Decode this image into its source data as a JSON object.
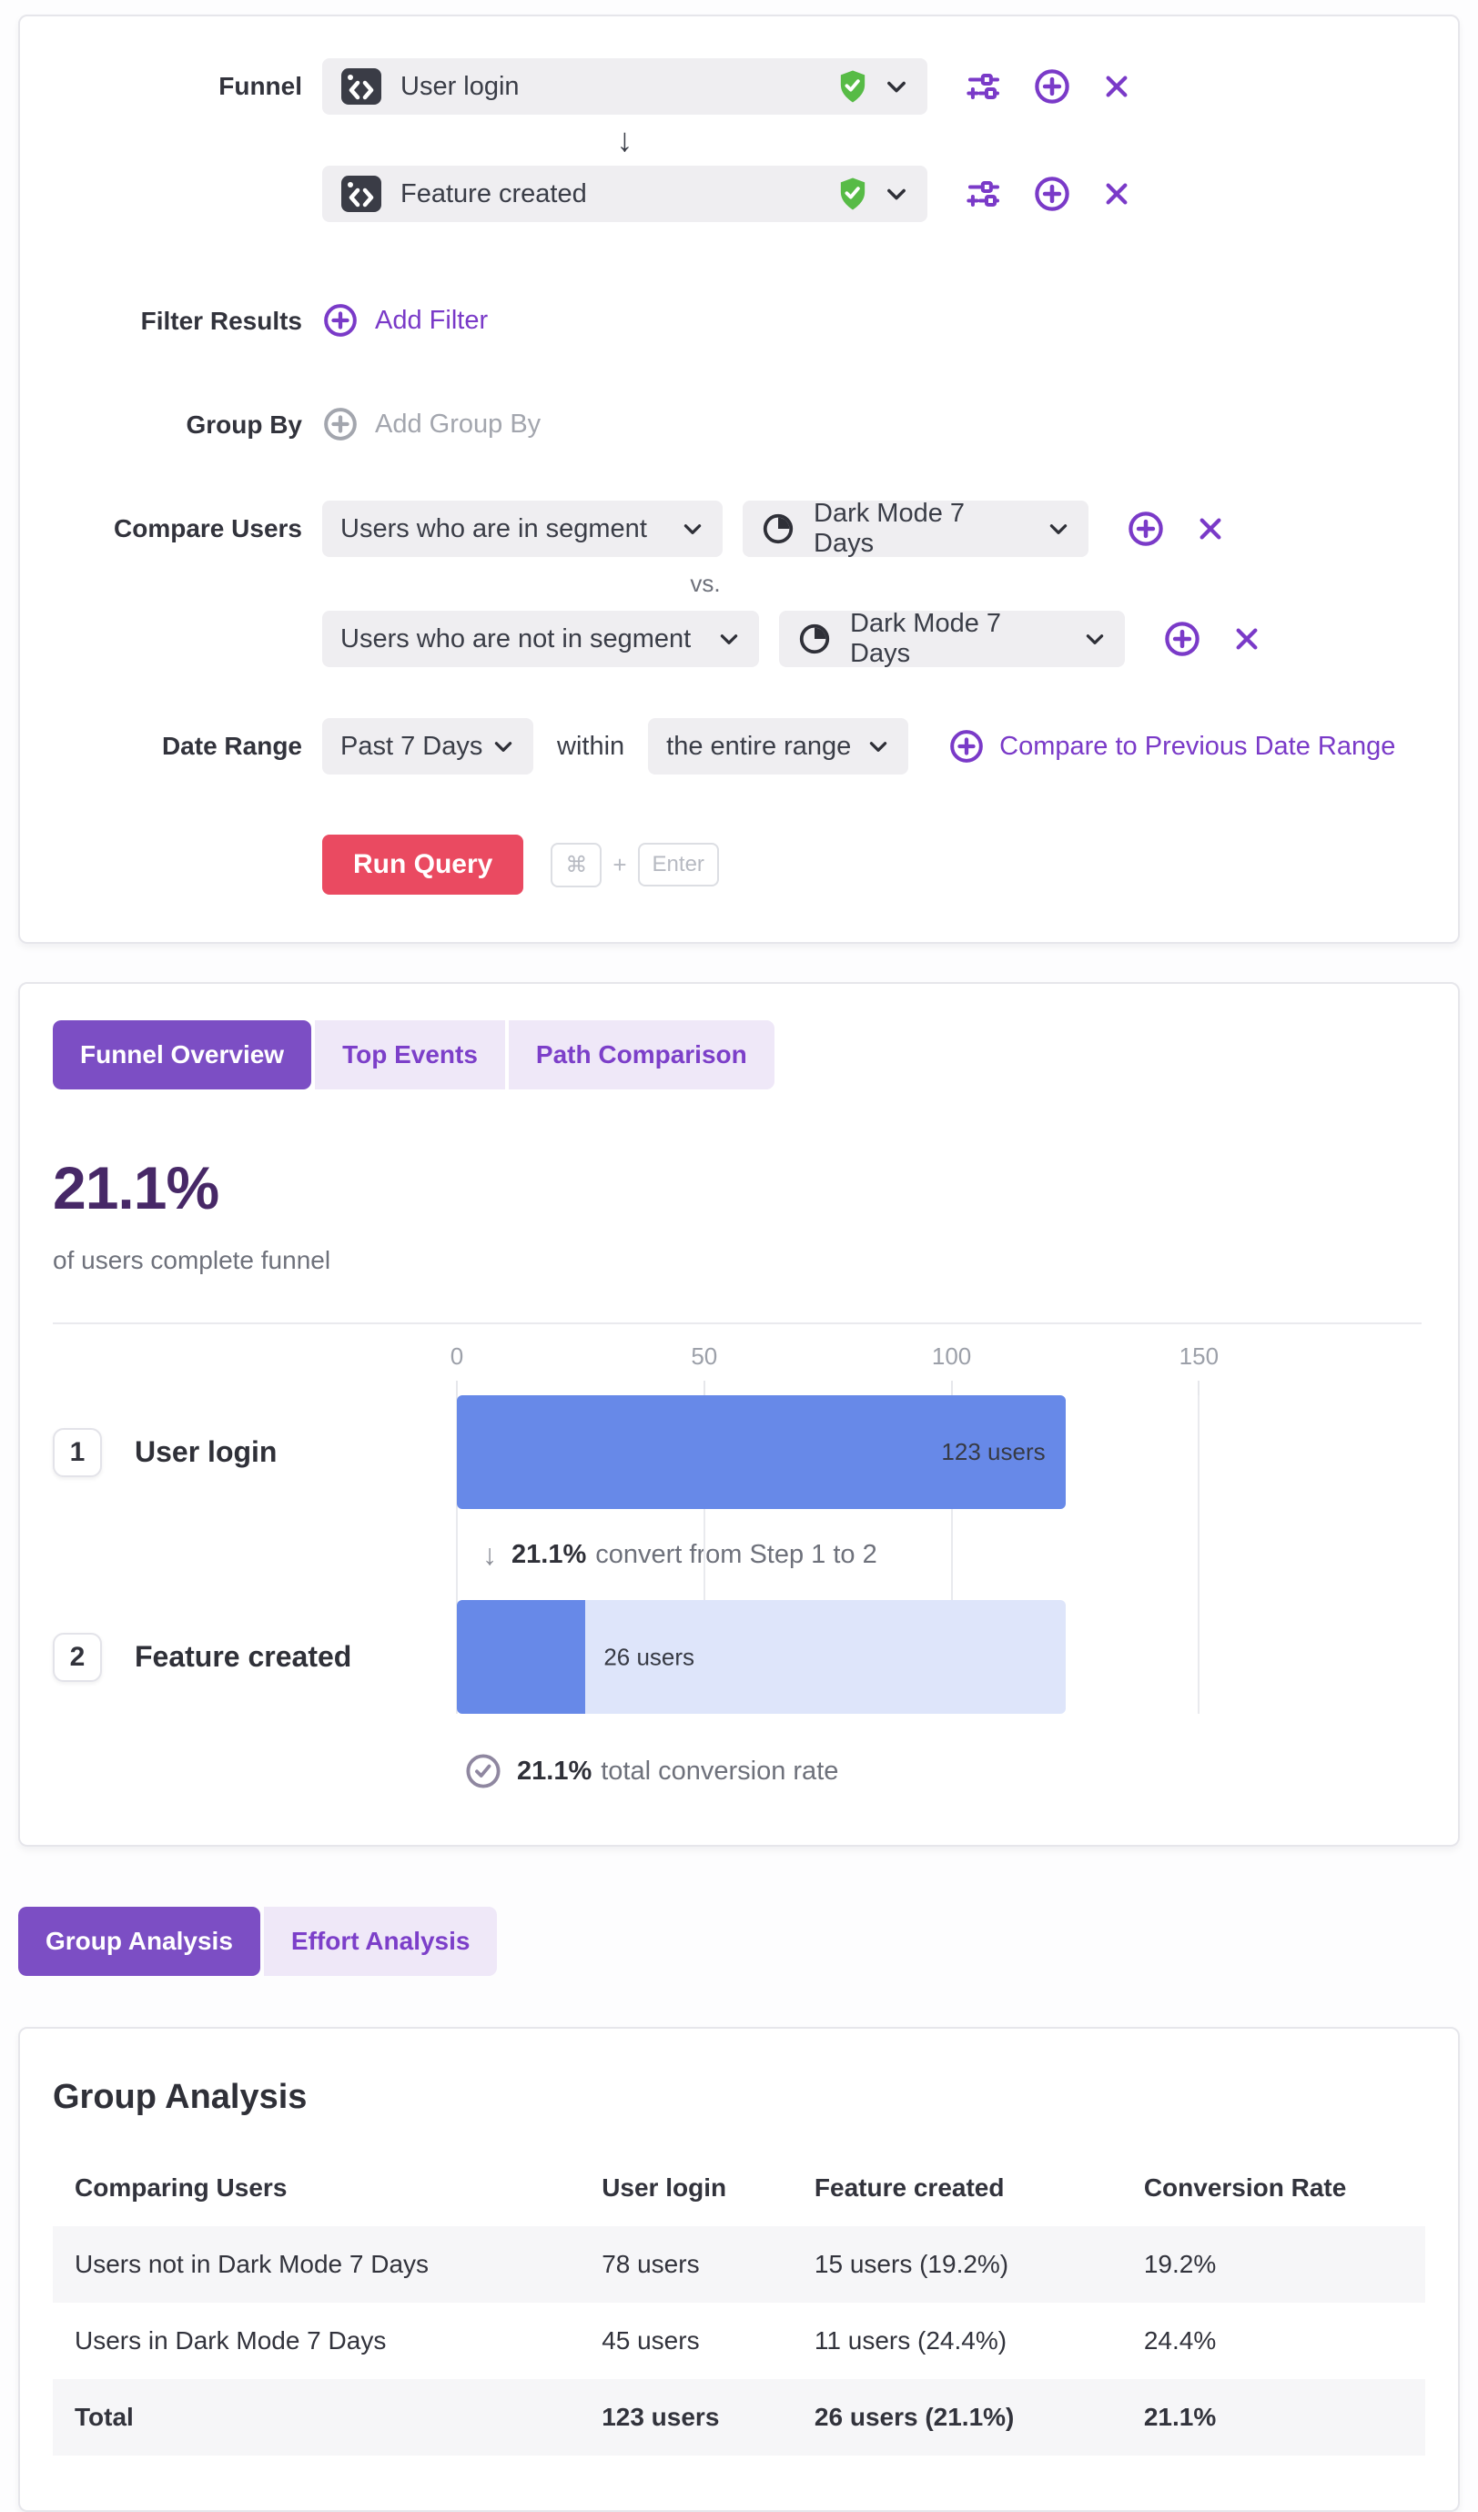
{
  "colors": {
    "accent_purple": "#7A3AC8",
    "tab_active_purple": "#7C4EC4",
    "tab_inactive_bg": "#EFE8F8",
    "headline_purple": "#472867",
    "run_button_red": "#EA4A61",
    "bar_blue": "#6789E8",
    "bar_track_blue": "#DEE5FA",
    "verified_green": "#57BB46",
    "event_icon_bg": "#3A3C46"
  },
  "query_builder": {
    "funnel_label": "Funnel",
    "steps": [
      {
        "event_name": "User login"
      },
      {
        "event_name": "Feature created"
      }
    ],
    "step_arrow_glyph": "↓",
    "filter_results_label": "Filter Results",
    "add_filter_label": "Add Filter",
    "group_by_label": "Group By",
    "add_group_by_label": "Add Group By",
    "compare_users_label": "Compare Users",
    "vs_label": "vs.",
    "compare_rows": [
      {
        "audience": "Users who are in segment",
        "segment": "Dark Mode 7 Days"
      },
      {
        "audience": "Users who are not in segment",
        "segment": "Dark Mode 7 Days"
      }
    ],
    "date_range_label": "Date Range",
    "date_range_value": "Past 7 Days",
    "within_label": "within",
    "window_value": "the entire range",
    "compare_previous_label": "Compare to Previous Date Range",
    "run_query_label": "Run Query",
    "shortcut_cmd": "⌘",
    "shortcut_plus": "+",
    "shortcut_enter": "Enter"
  },
  "results": {
    "tabs": [
      {
        "label": "Funnel Overview"
      },
      {
        "label": "Top Events"
      },
      {
        "label": "Path Comparison"
      }
    ],
    "headline_value": "21.1%",
    "headline_caption": "of users complete funnel",
    "chart_data": {
      "type": "bar",
      "orientation": "horizontal",
      "categories": [
        "User login",
        "Feature created"
      ],
      "step_numbers": [
        "1",
        "2"
      ],
      "values": [
        123,
        26
      ],
      "value_labels": [
        "123 users",
        "26 users"
      ],
      "ticks": [
        0,
        50,
        100,
        150
      ],
      "xlim": [
        0,
        150
      ],
      "grid": true,
      "step_conversion_arrow": "↓",
      "step_conversion_bold": "21.1%",
      "step_conversion_rest": "convert from Step 1 to 2",
      "total_conversion_bold": "21.1%",
      "total_conversion_rest": "total conversion rate"
    }
  },
  "analysis_tabs": [
    {
      "label": "Group Analysis"
    },
    {
      "label": "Effort Analysis"
    }
  ],
  "group_analysis": {
    "title": "Group Analysis",
    "columns": [
      "Comparing Users",
      "User login",
      "Feature created",
      "Conversion Rate"
    ],
    "rows": [
      {
        "cells": [
          "Users not in Dark Mode 7 Days",
          "78 users",
          "15 users (19.2%)",
          "19.2%"
        ]
      },
      {
        "cells": [
          "Users in Dark Mode 7 Days",
          "45 users",
          "11 users (24.4%)",
          "24.4%"
        ]
      },
      {
        "cells": [
          "Total",
          "123 users",
          "26 users (21.1%)",
          "21.1%"
        ]
      }
    ]
  }
}
